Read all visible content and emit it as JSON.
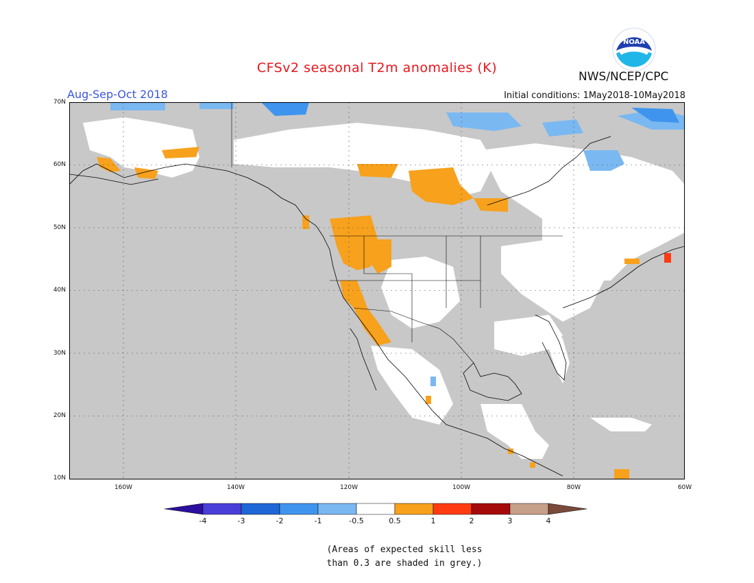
{
  "header": {
    "title": "CFSv2 seasonal T2m anomalies (K)",
    "organization": "NWS/NCEP/CPC",
    "season": "Aug-Sep-Oct 2018",
    "initial_conditions": "Initial conditions: 1May2018-10May2018",
    "logo_text": "NOAA"
  },
  "map": {
    "region": "North America",
    "lat_labels": [
      "70N",
      "60N",
      "50N",
      "40N",
      "30N",
      "20N",
      "10N"
    ],
    "lon_labels": [
      "160W",
      "140W",
      "120W",
      "100W",
      "80W",
      "60W"
    ],
    "skill_mask_color": "#c8c8c8",
    "land_color": "#ffffff",
    "coast_color": "#000000"
  },
  "legend": {
    "tick_labels": [
      "-4",
      "-3",
      "-2",
      "-1",
      "-0.5",
      "0.5",
      "1",
      "2",
      "3",
      "4"
    ],
    "bins": [
      {
        "range": "< -4",
        "color": "#2b0f9e"
      },
      {
        "range": "-4 to -3",
        "color": "#4a3ed8"
      },
      {
        "range": "-3 to -2",
        "color": "#1f67d6"
      },
      {
        "range": "-2 to -1",
        "color": "#3f95ee"
      },
      {
        "range": "-1 to -0.5",
        "color": "#7ab8f2"
      },
      {
        "range": "-0.5 to 0.5",
        "color": "#ffffff"
      },
      {
        "range": "0.5 to 1",
        "color": "#f7a11c"
      },
      {
        "range": "1 to 2",
        "color": "#ff3b12"
      },
      {
        "range": "2 to 3",
        "color": "#a50a0a"
      },
      {
        "range": "3 to 4",
        "color": "#c7a08a"
      },
      {
        "range": "> 4",
        "color": "#7a4a3a"
      }
    ]
  },
  "footnote": {
    "line1": "(Areas of expected skill less",
    "line2": "than 0.3 are shaded in grey.)"
  }
}
